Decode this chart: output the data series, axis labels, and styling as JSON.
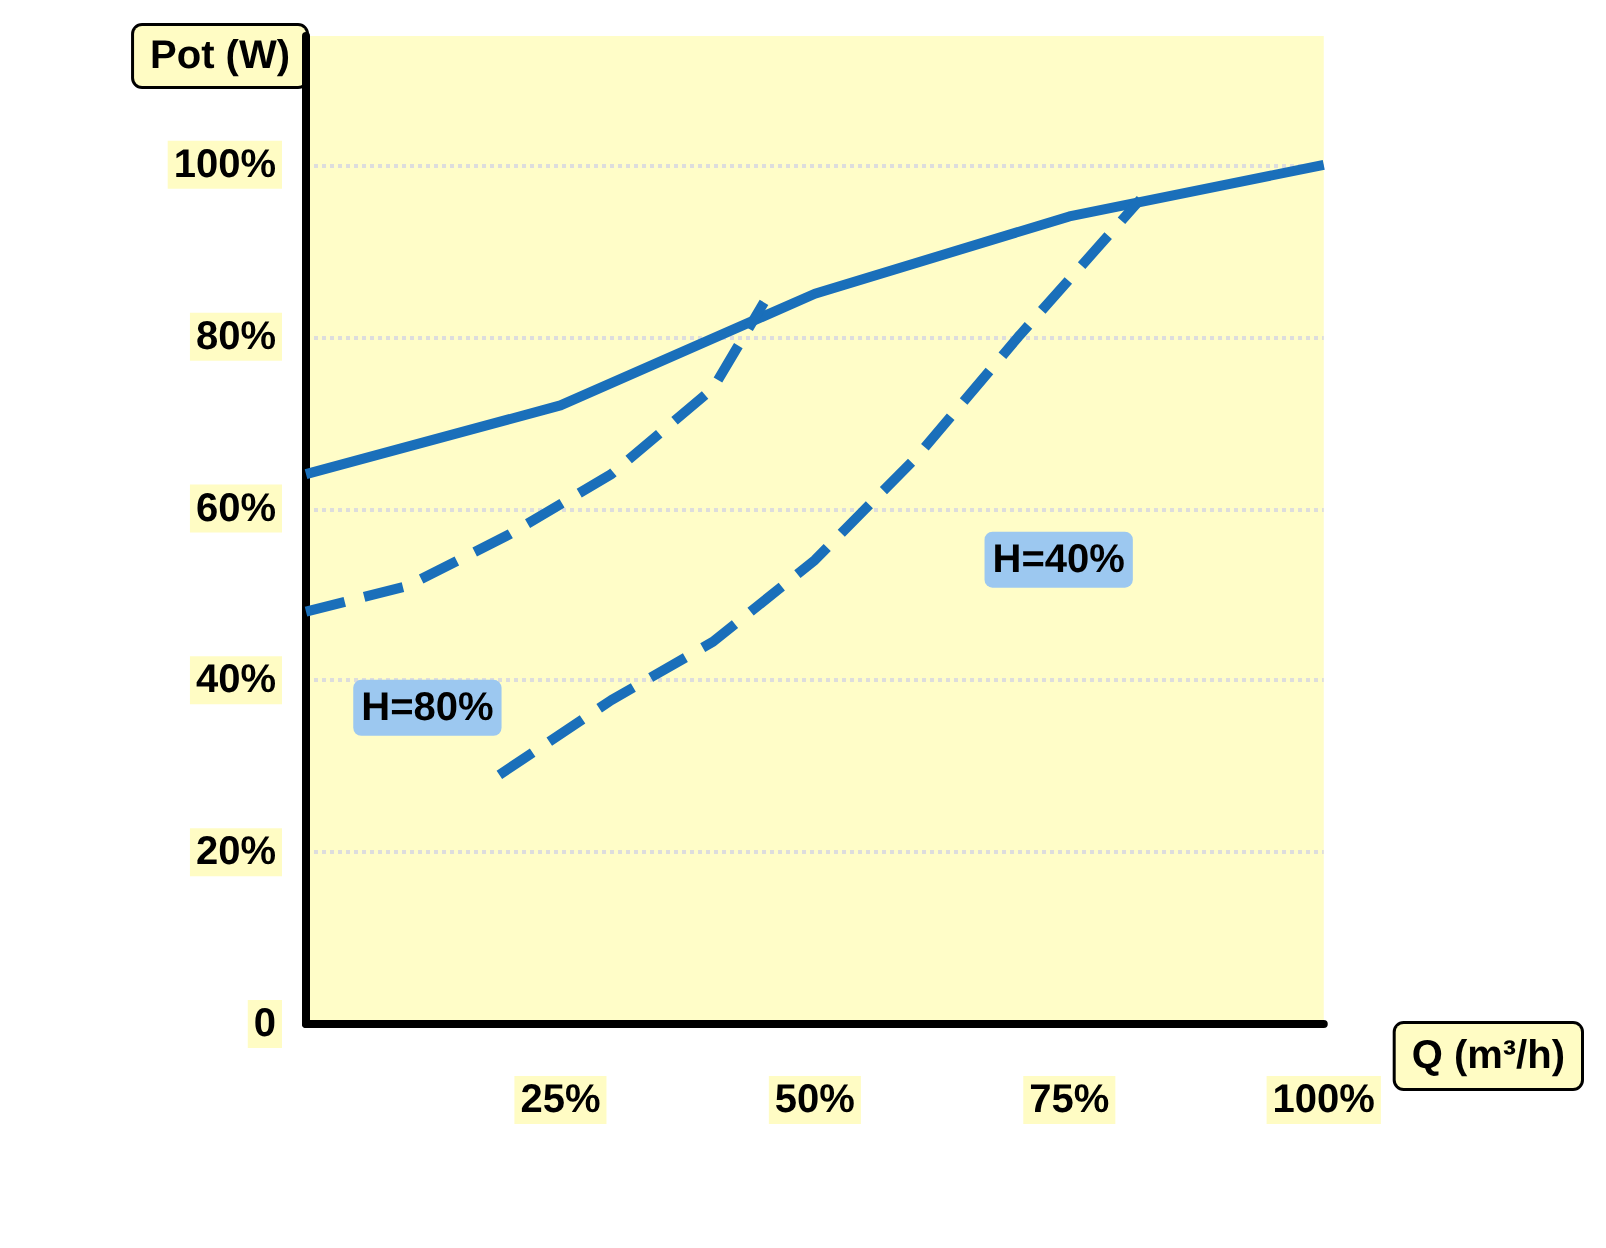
{
  "chart_data": {
    "type": "line",
    "xlabel": "Q (m³/h)",
    "ylabel": "Pot (W)",
    "xlim": [
      0,
      100
    ],
    "ylim": [
      0,
      115
    ],
    "xticks": [
      {
        "value": 25,
        "label": "25%"
      },
      {
        "value": 50,
        "label": "50%"
      },
      {
        "value": 75,
        "label": "75%"
      },
      {
        "value": 100,
        "label": "100%"
      }
    ],
    "yticks": [
      {
        "value": 0,
        "label": "0"
      },
      {
        "value": 20,
        "label": "20%"
      },
      {
        "value": 40,
        "label": "40%"
      },
      {
        "value": 60,
        "label": "60%"
      },
      {
        "value": 80,
        "label": "80%"
      },
      {
        "value": 100,
        "label": "100%"
      }
    ],
    "grid": "y",
    "marker": "none",
    "series": [
      {
        "color": "#1a6fba",
        "line_style": "solid",
        "x": [
          0,
          25,
          50,
          75,
          100
        ],
        "values": [
          64,
          72,
          85,
          94,
          100
        ]
      },
      {
        "color": "#1a6fba",
        "line_style": "dashed",
        "x": [
          0,
          10,
          20,
          30,
          40,
          45
        ],
        "values": [
          48,
          51,
          57,
          64,
          74,
          84
        ]
      },
      {
        "color": "#1a6fba",
        "line_style": "dashed",
        "x": [
          19,
          30,
          40,
          50,
          60,
          70,
          82
        ],
        "values": [
          29,
          37.7,
          44.5,
          54,
          66,
          80,
          96
        ]
      }
    ],
    "annotations": [
      "H=80%",
      "H=40%"
    ]
  }
}
